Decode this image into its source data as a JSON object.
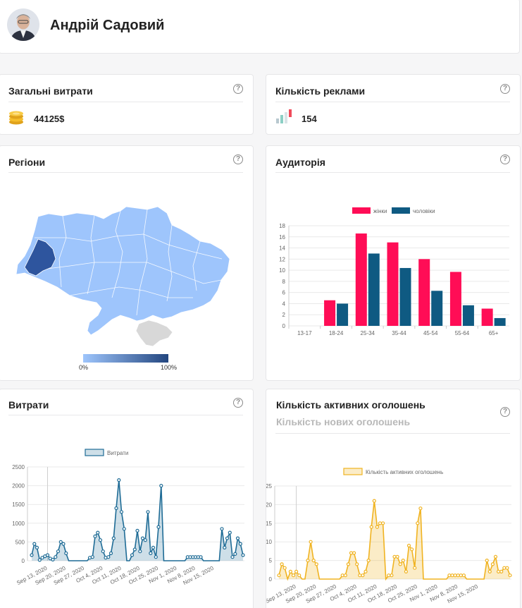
{
  "profile": {
    "name": "Андрій Садовий"
  },
  "spend_card": {
    "title": "Загальні витрати",
    "help": "?",
    "value": "44125$",
    "icon": "coins-icon"
  },
  "ads_card": {
    "title": "Кількість реклами",
    "help": "?",
    "value": "154",
    "icon": "bar-chart-icon"
  },
  "regions_card": {
    "title": "Регіони",
    "help": "?",
    "legend_min": "0%",
    "legend_max": "100%",
    "colors": {
      "low": "#9ec5fc",
      "high": "#23467f",
      "disputed": "#d8d8d8"
    }
  },
  "audience_card": {
    "title": "Аудиторія",
    "help": "?"
  },
  "spend_ts_card": {
    "title": "Витрати",
    "help": "?"
  },
  "active_ads_card": {
    "title": "Кількість активних оголошень",
    "subtitle": "Кількість нових оголошень",
    "help": "?"
  },
  "chart_data": [
    {
      "type": "bar",
      "categories": [
        "13-17",
        "18-24",
        "25-34",
        "35-44",
        "45-54",
        "55-64",
        "65+"
      ],
      "series": [
        {
          "name": "жінки",
          "color": "#ff0d56",
          "values": [
            0,
            4.6,
            16.6,
            15,
            12,
            9.7,
            3.1
          ]
        },
        {
          "name": "чоловіки",
          "color": "#0f5a82",
          "values": [
            0,
            4,
            13,
            10.4,
            6.3,
            3.7,
            1.4
          ]
        }
      ],
      "ylim": [
        0,
        18
      ],
      "yticks": [
        0,
        2,
        4,
        6,
        8,
        10,
        12,
        14,
        16,
        18
      ],
      "legend": "top"
    },
    {
      "type": "area",
      "series": [
        {
          "name": "Витрати",
          "color": "#1f6c96",
          "values": [
            150,
            450,
            350,
            20,
            80,
            120,
            150,
            60,
            30,
            100,
            250,
            500,
            450,
            200,
            0,
            0,
            0,
            0,
            0,
            0,
            0,
            0,
            80,
            100,
            650,
            750,
            550,
            250,
            80,
            100,
            200,
            600,
            1400,
            2150,
            1300,
            850,
            0,
            0,
            150,
            300,
            800,
            250,
            600,
            550,
            1300,
            200,
            350,
            100,
            900,
            2000,
            0,
            0,
            0,
            0,
            0,
            0,
            0,
            0,
            0,
            100,
            100,
            100,
            100,
            100,
            100,
            0,
            0,
            0,
            0,
            0,
            0,
            0,
            850,
            350,
            600,
            750,
            100,
            180,
            600,
            450,
            150
          ]
        }
      ],
      "x_tick_labels": [
        "Sep 13, 2020",
        "Sep 20, 2020",
        "Sep 27, 2020",
        "Oct 4, 2020",
        "Oct 11, 2020",
        "Oct 18, 2020",
        "Oct 25, 2020",
        "Nov 1, 2020",
        "Nov 8, 2020",
        "Nov 15, 2020"
      ],
      "ylim": [
        0,
        2500
      ],
      "yticks": [
        0,
        500,
        1000,
        1500,
        2000,
        2500
      ],
      "legend": "top"
    },
    {
      "type": "area",
      "series": [
        {
          "name": "Кількість активних оголошень",
          "color": "#f0b321",
          "values": [
            1,
            4,
            3,
            0,
            2,
            1,
            2,
            1,
            0,
            0,
            5,
            10,
            5,
            4,
            0,
            0,
            0,
            0,
            0,
            0,
            0,
            0,
            1,
            1,
            4,
            7,
            7,
            4,
            1,
            1,
            2,
            5,
            14,
            21,
            14,
            15,
            15,
            0,
            1,
            1,
            6,
            6,
            4,
            5,
            2,
            9,
            8,
            3,
            15,
            19,
            0,
            0,
            0,
            0,
            0,
            0,
            0,
            0,
            0,
            1,
            1,
            1,
            1,
            1,
            1,
            0,
            0,
            0,
            0,
            0,
            0,
            0,
            5,
            2,
            4,
            6,
            2,
            2,
            3,
            3,
            1
          ]
        }
      ],
      "x_tick_labels": [
        "Sep 13, 2020",
        "Sep 20, 2020",
        "Sep 27, 2020",
        "Oct 4, 2020",
        "Oct 11, 2020",
        "Oct 18, 2020",
        "Oct 25, 2020",
        "Nov 1, 2020",
        "Nov 8, 2020",
        "Nov 15, 2020"
      ],
      "ylim": [
        0,
        25
      ],
      "yticks": [
        0,
        5,
        10,
        15,
        20,
        25
      ],
      "legend": "top"
    }
  ]
}
